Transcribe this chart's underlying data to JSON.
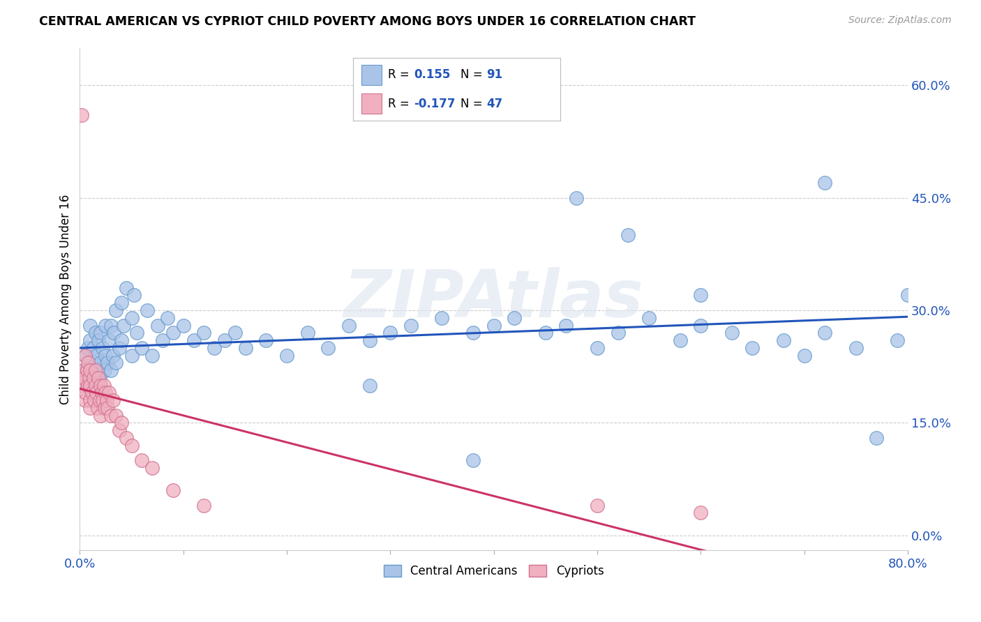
{
  "title": "CENTRAL AMERICAN VS CYPRIOT CHILD POVERTY AMONG BOYS UNDER 16 CORRELATION CHART",
  "source": "Source: ZipAtlas.com",
  "ylabel": "Child Poverty Among Boys Under 16",
  "yticks": [
    0.0,
    0.15,
    0.3,
    0.45,
    0.6
  ],
  "ytick_labels": [
    "0.0%",
    "15.0%",
    "30.0%",
    "45.0%",
    "60.0%"
  ],
  "xlim": [
    0.0,
    0.8
  ],
  "ylim": [
    -0.02,
    0.65
  ],
  "watermark": "ZIPAtlas",
  "blue_color": "#aac4e8",
  "blue_edge": "#6699cc",
  "pink_color": "#f0b0c0",
  "pink_edge": "#d07090",
  "trend_blue": "#2255bb",
  "trend_pink": "#cc3366",
  "R_blue": 0.155,
  "N_blue": 91,
  "R_pink": -0.177,
  "N_pink": 47,
  "grid_color": "#cccccc",
  "background_color": "#ffffff",
  "blue_x": [
    0.005,
    0.006,
    0.007,
    0.008,
    0.009,
    0.01,
    0.01,
    0.01,
    0.01,
    0.012,
    0.013,
    0.014,
    0.015,
    0.015,
    0.015,
    0.016,
    0.017,
    0.018,
    0.019,
    0.02,
    0.02,
    0.02,
    0.022,
    0.024,
    0.025,
    0.025,
    0.027,
    0.028,
    0.03,
    0.03,
    0.032,
    0.033,
    0.035,
    0.035,
    0.038,
    0.04,
    0.04,
    0.042,
    0.045,
    0.05,
    0.05,
    0.052,
    0.055,
    0.06,
    0.065,
    0.07,
    0.075,
    0.08,
    0.085,
    0.09,
    0.1,
    0.11,
    0.12,
    0.13,
    0.14,
    0.15,
    0.16,
    0.18,
    0.2,
    0.22,
    0.24,
    0.26,
    0.28,
    0.3,
    0.32,
    0.35,
    0.38,
    0.4,
    0.42,
    0.45,
    0.47,
    0.5,
    0.52,
    0.55,
    0.58,
    0.6,
    0.63,
    0.65,
    0.68,
    0.7,
    0.72,
    0.75,
    0.77,
    0.79,
    0.8,
    0.48,
    0.53,
    0.38,
    0.28,
    0.72,
    0.6
  ],
  "blue_y": [
    0.22,
    0.24,
    0.2,
    0.25,
    0.21,
    0.23,
    0.26,
    0.2,
    0.28,
    0.22,
    0.25,
    0.21,
    0.23,
    0.27,
    0.2,
    0.24,
    0.22,
    0.26,
    0.21,
    0.23,
    0.27,
    0.2,
    0.25,
    0.22,
    0.24,
    0.28,
    0.23,
    0.26,
    0.22,
    0.28,
    0.24,
    0.27,
    0.23,
    0.3,
    0.25,
    0.26,
    0.31,
    0.28,
    0.33,
    0.24,
    0.29,
    0.32,
    0.27,
    0.25,
    0.3,
    0.24,
    0.28,
    0.26,
    0.29,
    0.27,
    0.28,
    0.26,
    0.27,
    0.25,
    0.26,
    0.27,
    0.25,
    0.26,
    0.24,
    0.27,
    0.25,
    0.28,
    0.26,
    0.27,
    0.28,
    0.29,
    0.27,
    0.28,
    0.29,
    0.27,
    0.28,
    0.25,
    0.27,
    0.29,
    0.26,
    0.28,
    0.27,
    0.25,
    0.26,
    0.24,
    0.27,
    0.25,
    0.13,
    0.26,
    0.32,
    0.45,
    0.4,
    0.1,
    0.2,
    0.47,
    0.32
  ],
  "pink_x": [
    0.002,
    0.003,
    0.004,
    0.005,
    0.005,
    0.006,
    0.007,
    0.008,
    0.008,
    0.009,
    0.01,
    0.01,
    0.01,
    0.01,
    0.012,
    0.013,
    0.014,
    0.015,
    0.015,
    0.016,
    0.017,
    0.018,
    0.019,
    0.02,
    0.02,
    0.021,
    0.022,
    0.023,
    0.024,
    0.025,
    0.026,
    0.027,
    0.028,
    0.03,
    0.032,
    0.035,
    0.038,
    0.04,
    0.045,
    0.05,
    0.06,
    0.07,
    0.09,
    0.12,
    0.5,
    0.6,
    0.002
  ],
  "pink_y": [
    0.2,
    0.22,
    0.21,
    0.18,
    0.24,
    0.19,
    0.22,
    0.2,
    0.23,
    0.21,
    0.18,
    0.2,
    0.22,
    0.17,
    0.19,
    0.21,
    0.18,
    0.2,
    0.22,
    0.19,
    0.17,
    0.21,
    0.18,
    0.2,
    0.16,
    0.19,
    0.18,
    0.2,
    0.17,
    0.19,
    0.18,
    0.17,
    0.19,
    0.16,
    0.18,
    0.16,
    0.14,
    0.15,
    0.13,
    0.12,
    0.1,
    0.09,
    0.06,
    0.04,
    0.04,
    0.03,
    0.56
  ]
}
